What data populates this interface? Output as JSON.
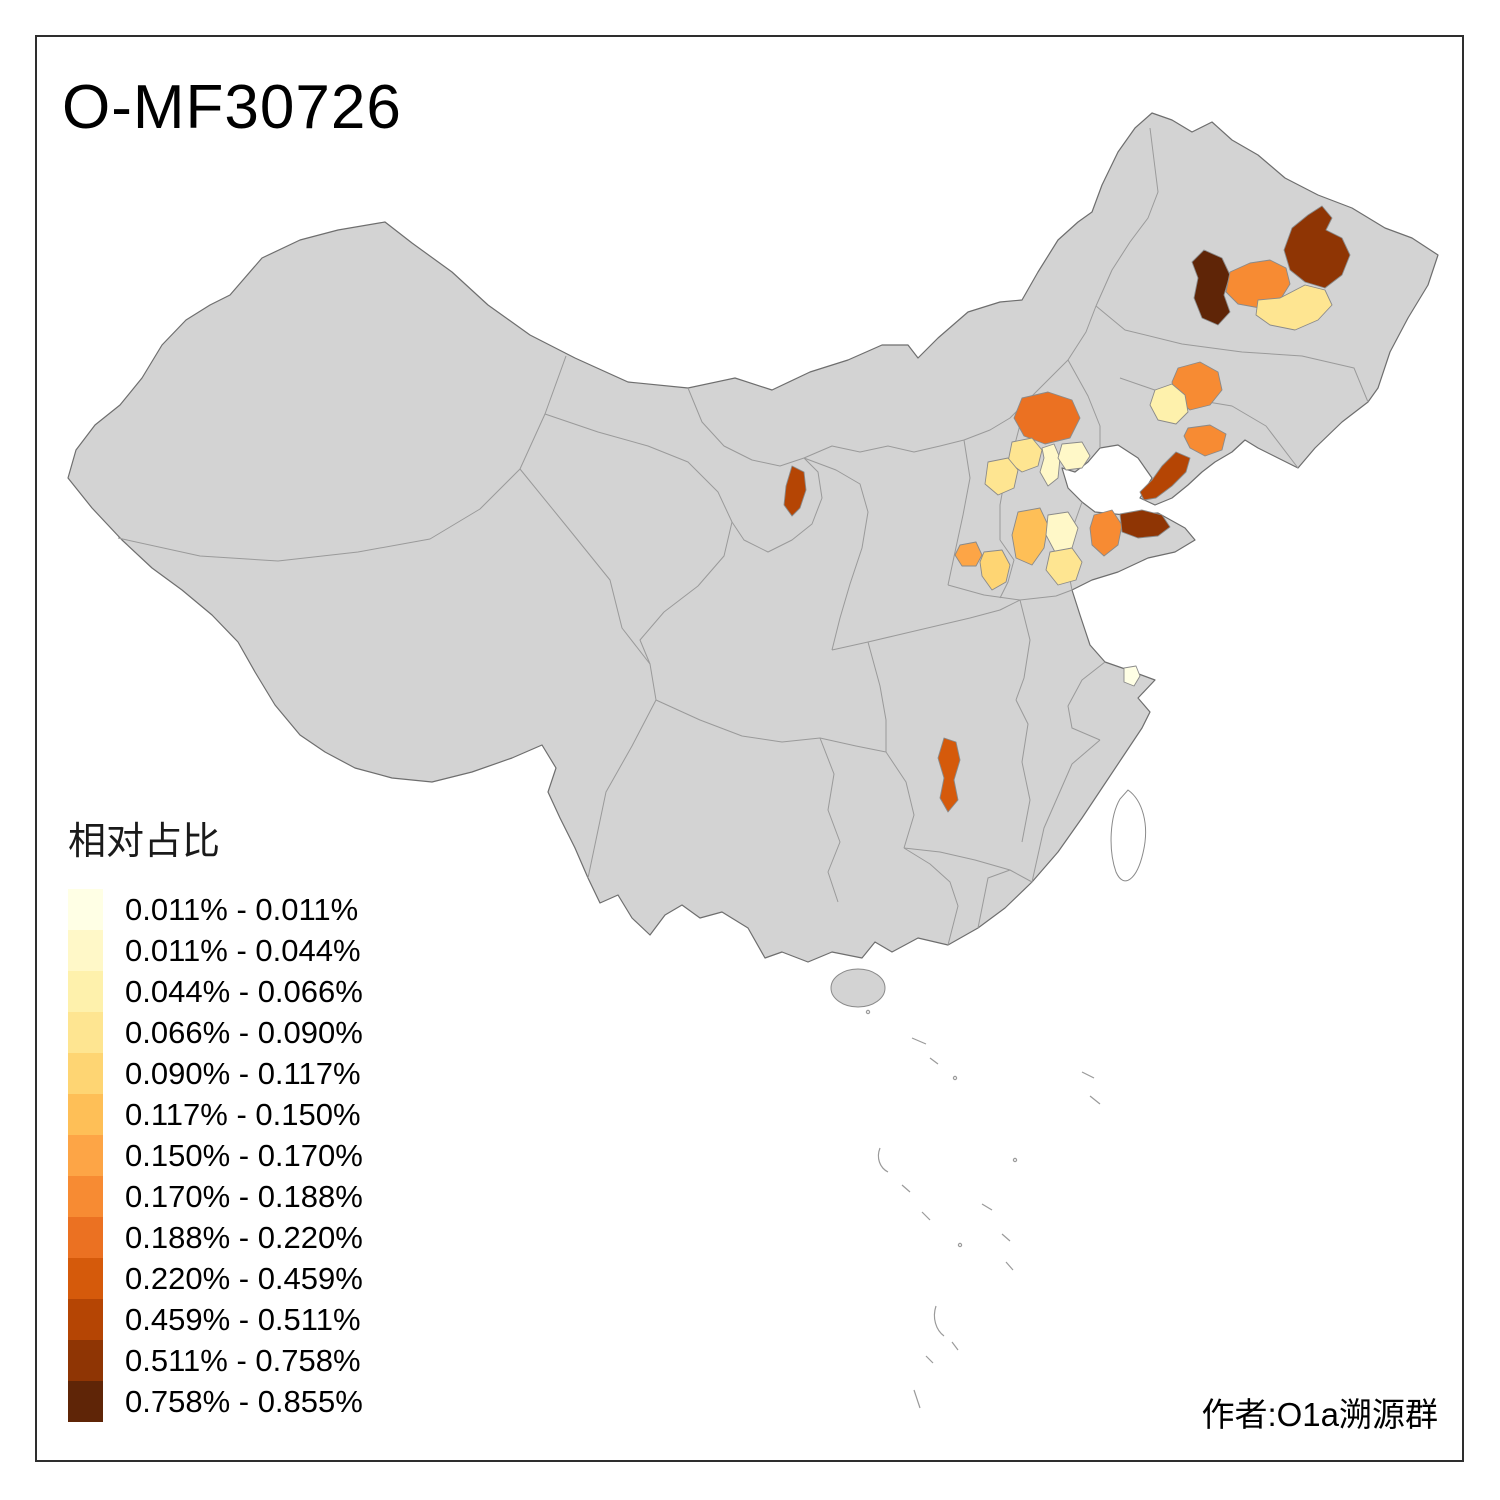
{
  "title": "O-MF30726",
  "attribution": "作者:O1a溯源群",
  "legend": {
    "title": "相对占比",
    "items": [
      {
        "label": "0.011% - 0.011%",
        "color": "#FFFFE5"
      },
      {
        "label": "0.011% - 0.044%",
        "color": "#FFF8C8"
      },
      {
        "label": "0.044% - 0.066%",
        "color": "#FEF1AC"
      },
      {
        "label": "0.066% - 0.090%",
        "color": "#FEE591"
      },
      {
        "label": "0.090% - 0.117%",
        "color": "#FED573"
      },
      {
        "label": "0.117% - 0.150%",
        "color": "#FEBF57"
      },
      {
        "label": "0.150% - 0.170%",
        "color": "#FDA546"
      },
      {
        "label": "0.170% - 0.188%",
        "color": "#F78B33"
      },
      {
        "label": "0.188% - 0.220%",
        "color": "#EB7122"
      },
      {
        "label": "0.220% - 0.459%",
        "color": "#D55A0B"
      },
      {
        "label": "0.459% - 0.511%",
        "color": "#B54504"
      },
      {
        "label": "0.511% - 0.758%",
        "color": "#8F3504"
      },
      {
        "label": "0.758% - 0.855%",
        "color": "#5F2507"
      }
    ]
  },
  "map": {
    "land_color": "#D3D3D3",
    "island_color": "#FFFFFF",
    "regions": [
      {
        "id": "heilongjiang-west",
        "color": "#5F2507"
      },
      {
        "id": "heilongjiang-center",
        "color": "#8F3504"
      },
      {
        "id": "heilongjiang-mid-orange",
        "color": "#F78B33"
      },
      {
        "id": "heilongjiang-south-yellow",
        "color": "#FEE591"
      },
      {
        "id": "jilin-west",
        "color": "#F78B33"
      },
      {
        "id": "liaoning-north-yellow",
        "color": "#FEF1AC"
      },
      {
        "id": "liaoning-east",
        "color": "#F78B33"
      },
      {
        "id": "liaodong-peninsula",
        "color": "#B54504"
      },
      {
        "id": "inner-mongolia-southeast",
        "color": "#EB7122"
      },
      {
        "id": "beijing",
        "color": "#FEE591"
      },
      {
        "id": "tianjin",
        "color": "#FFF8C8"
      },
      {
        "id": "hebei-east",
        "color": "#FFF8C8"
      },
      {
        "id": "hebei-south",
        "color": "#FEE591"
      },
      {
        "id": "ningxia",
        "color": "#B54504"
      },
      {
        "id": "shanxi-south",
        "color": "#FEBF57"
      },
      {
        "id": "hebei-shanxi-cream",
        "color": "#FFF8C8"
      },
      {
        "id": "henan-north-yellow",
        "color": "#FEE591"
      },
      {
        "id": "shandong-west",
        "color": "#F78B33"
      },
      {
        "id": "shandong-peninsula",
        "color": "#8F3504"
      },
      {
        "id": "shaanxi-center",
        "color": "#FDA546"
      },
      {
        "id": "shaanxi-east-yellow",
        "color": "#FED573"
      },
      {
        "id": "shanghai",
        "color": "#FFFFE5"
      },
      {
        "id": "hunan-west",
        "color": "#D55A0B"
      }
    ]
  }
}
